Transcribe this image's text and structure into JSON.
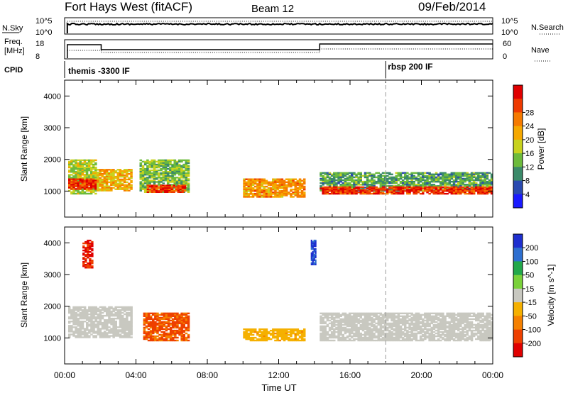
{
  "header": {
    "station": "Fort Hays West (fitACF)",
    "beam": "Beam 12",
    "date": "09/Feb/2014"
  },
  "noise_panel": {
    "left_label": "N.Sky",
    "right_label": "N.Search",
    "left_ticks": [
      "10^5",
      "10^0"
    ],
    "right_ticks": [
      "10^5",
      "10^0"
    ]
  },
  "freq_panel": {
    "left_label_line1": "Freq.",
    "left_label_line2": "[MHz]",
    "right_label": "Nave",
    "left_ticks": [
      "18",
      "8"
    ],
    "right_ticks": [
      "60",
      "0"
    ]
  },
  "cpid": {
    "label": "CPID",
    "segments": [
      {
        "text": "themis -3300 IF",
        "start_hour": 0
      },
      {
        "text": "rbsp 200 IF",
        "start_hour": 18
      }
    ]
  },
  "power_colorbar": {
    "label": "Power [dB]",
    "ticks": [
      "4",
      "8",
      "12",
      "16",
      "20",
      "24",
      "28"
    ],
    "colors": [
      "#1a1aff",
      "#2a4ab0",
      "#3b8a6a",
      "#6dbb3c",
      "#c8d21e",
      "#f5a800",
      "#f57a00",
      "#ee3a00",
      "#e00000"
    ]
  },
  "velocity_colorbar": {
    "label": "Velocity [m s^-1]",
    "ticks": [
      "200",
      "100",
      "50",
      "15",
      "-15",
      "-50",
      "-100",
      "-200"
    ],
    "colors": [
      "#1e2fcf",
      "#2e6fd0",
      "#22a84a",
      "#7ad13a",
      "#c8c8c0",
      "#f5b000",
      "#f58000",
      "#ee4000",
      "#e00000"
    ]
  },
  "axes": {
    "ylabel": "Slant Range [km]",
    "xlabel": "Time UT",
    "x_ticks": [
      "00:00",
      "04:00",
      "08:00",
      "12:00",
      "16:00",
      "20:00",
      "00:00"
    ],
    "y_ticks": [
      "1000",
      "2000",
      "3000",
      "4000"
    ]
  },
  "chart_data": [
    {
      "type": "heatmap",
      "title": "",
      "quantity": "Power",
      "unit": "dB",
      "xlabel": "Time UT",
      "ylabel": "Slant Range [km]",
      "xlim_hours": [
        0,
        24
      ],
      "ylim_km": [
        180,
        4500
      ],
      "color_scale": [
        0,
        30
      ],
      "regions": [
        {
          "t0": 0.2,
          "t1": 1.8,
          "r0": 900,
          "r1": 2000,
          "value": 14
        },
        {
          "t0": 0.2,
          "t1": 1.8,
          "r0": 1050,
          "r1": 1400,
          "value": 26
        },
        {
          "t0": 1.8,
          "t1": 3.8,
          "r0": 1000,
          "r1": 1700,
          "value": 18
        },
        {
          "t0": 4.2,
          "t1": 7.0,
          "r0": 950,
          "r1": 2000,
          "value": 12
        },
        {
          "t0": 4.6,
          "t1": 6.8,
          "r0": 950,
          "r1": 1200,
          "value": 26
        },
        {
          "t0": 10.0,
          "t1": 13.5,
          "r0": 800,
          "r1": 1400,
          "value": 20
        },
        {
          "t0": 14.3,
          "t1": 24.0,
          "r0": 1000,
          "r1": 1600,
          "value": 10
        },
        {
          "t0": 14.3,
          "t1": 24.0,
          "r0": 900,
          "r1": 1150,
          "value": 26
        }
      ]
    },
    {
      "type": "heatmap",
      "title": "",
      "quantity": "Velocity",
      "unit": "m s^-1",
      "xlabel": "Time UT",
      "ylabel": "Slant Range [km]",
      "xlim_hours": [
        0,
        24
      ],
      "ylim_km": [
        180,
        4500
      ],
      "color_scale": [
        -250,
        250
      ],
      "regions": [
        {
          "t0": 0.2,
          "t1": 3.8,
          "r0": 1000,
          "r1": 2000,
          "value": 0
        },
        {
          "t0": 1.0,
          "t1": 1.6,
          "r0": 3200,
          "r1": 4100,
          "value": -200
        },
        {
          "t0": 4.4,
          "t1": 7.0,
          "r0": 900,
          "r1": 1800,
          "value": -150
        },
        {
          "t0": 10.0,
          "t1": 13.5,
          "r0": 900,
          "r1": 1300,
          "value": -60
        },
        {
          "t0": 13.8,
          "t1": 14.1,
          "r0": 3300,
          "r1": 4100,
          "value": 200
        },
        {
          "t0": 14.3,
          "t1": 24.0,
          "r0": 900,
          "r1": 1800,
          "value": 0
        }
      ]
    }
  ]
}
